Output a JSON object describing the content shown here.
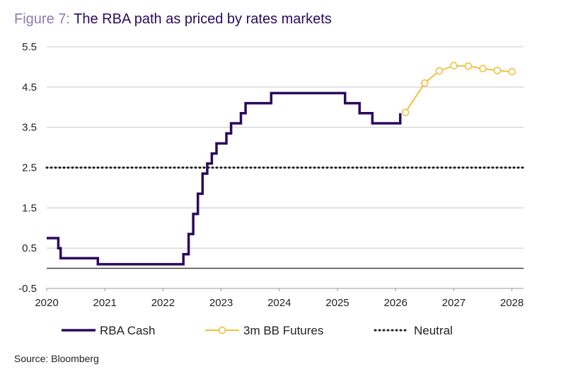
{
  "title_prefix": "Figure 7:",
  "title_main": "The RBA path as priced by rates markets",
  "source": "Source: Bloomberg",
  "colors": {
    "rba": "#2b0a5c",
    "futures": "#f0c040",
    "neutral": "#222222",
    "grid": "#c8c8c8"
  },
  "chart_data": {
    "type": "line",
    "title": "The RBA path as priced by rates markets",
    "xlabel": "",
    "ylabel": "",
    "xlim": [
      2020,
      2028.2
    ],
    "ylim": [
      -0.5,
      5.5
    ],
    "x_ticks": [
      2020,
      2021,
      2022,
      2023,
      2024,
      2025,
      2026,
      2027,
      2028
    ],
    "y_ticks": [
      -0.5,
      0.5,
      1.5,
      2.5,
      3.5,
      4.5,
      5.5
    ],
    "y_tick_labels": [
      "-0.5",
      "0.5",
      "1.5",
      "2.5",
      "3.5",
      "4.5",
      "5.5"
    ],
    "grid": true,
    "series": [
      {
        "name": "RBA Cash",
        "style": "step",
        "points": [
          [
            2020.0,
            0.75
          ],
          [
            2020.2,
            0.75
          ],
          [
            2020.2,
            0.5
          ],
          [
            2020.24,
            0.5
          ],
          [
            2020.24,
            0.25
          ],
          [
            2020.88,
            0.25
          ],
          [
            2020.88,
            0.1
          ],
          [
            2022.35,
            0.1
          ],
          [
            2022.35,
            0.35
          ],
          [
            2022.44,
            0.35
          ],
          [
            2022.44,
            0.85
          ],
          [
            2022.52,
            0.85
          ],
          [
            2022.52,
            1.35
          ],
          [
            2022.6,
            1.35
          ],
          [
            2022.6,
            1.85
          ],
          [
            2022.68,
            1.85
          ],
          [
            2022.68,
            2.35
          ],
          [
            2022.76,
            2.35
          ],
          [
            2022.76,
            2.6
          ],
          [
            2022.84,
            2.6
          ],
          [
            2022.84,
            2.85
          ],
          [
            2022.92,
            2.85
          ],
          [
            2022.92,
            3.1
          ],
          [
            2023.09,
            3.1
          ],
          [
            2023.09,
            3.35
          ],
          [
            2023.17,
            3.35
          ],
          [
            2023.17,
            3.6
          ],
          [
            2023.34,
            3.6
          ],
          [
            2023.34,
            3.85
          ],
          [
            2023.42,
            3.85
          ],
          [
            2023.42,
            4.1
          ],
          [
            2023.86,
            4.1
          ],
          [
            2023.86,
            4.35
          ],
          [
            2025.13,
            4.35
          ],
          [
            2025.13,
            4.1
          ],
          [
            2025.38,
            4.1
          ],
          [
            2025.38,
            3.85
          ],
          [
            2025.6,
            3.85
          ],
          [
            2025.6,
            3.6
          ],
          [
            2026.08,
            3.6
          ],
          [
            2026.08,
            3.85
          ]
        ]
      },
      {
        "name": "3m BB Futures",
        "style": "line-marker",
        "points": [
          [
            2026.17,
            3.87
          ],
          [
            2026.5,
            4.6
          ],
          [
            2026.75,
            4.9
          ],
          [
            2027.0,
            5.03
          ],
          [
            2027.25,
            5.02
          ],
          [
            2027.5,
            4.96
          ],
          [
            2027.75,
            4.91
          ],
          [
            2028.0,
            4.88
          ]
        ]
      },
      {
        "name": "Neutral",
        "style": "dotted",
        "points": [
          [
            2020.0,
            2.5
          ],
          [
            2028.2,
            2.5
          ]
        ]
      }
    ],
    "legend": {
      "placement": "bottom",
      "entries": [
        "RBA Cash",
        "3m BB Futures",
        "Neutral"
      ]
    }
  }
}
